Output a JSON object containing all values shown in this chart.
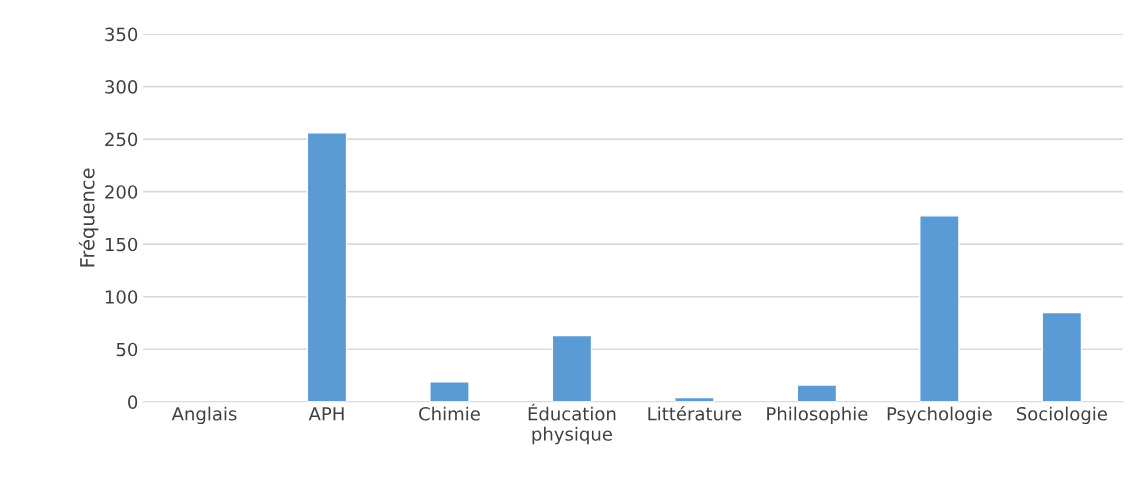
{
  "chart_data": {
    "type": "bar",
    "ylabel": "Fréquence",
    "categories": [
      "Anglais",
      "APH",
      "Chimie",
      "Éducation\nphysique",
      "Littérature",
      "Philosophie",
      "Psychologie",
      "Sociologie"
    ],
    "values": [
      null,
      256,
      19,
      63,
      4,
      16,
      177,
      85
    ],
    "color": "#5b9bd5",
    "ylim": [
      0,
      350
    ],
    "yticks": [
      0,
      50,
      100,
      150,
      200,
      250,
      300,
      350
    ],
    "grid": "y"
  }
}
